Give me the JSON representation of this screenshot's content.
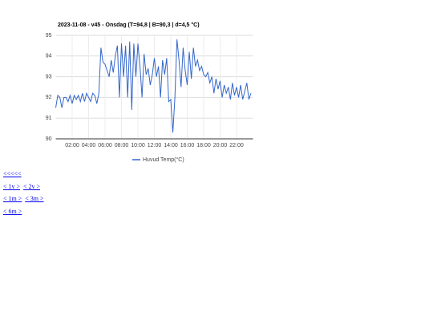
{
  "chart_data": {
    "type": "line",
    "title": "2023-11-08 - v45 - Onsdag (T=94,8 | B=90,3 | d=4,5 °C)",
    "x": [
      0,
      0.25,
      0.5,
      0.75,
      1,
      1.25,
      1.5,
      1.75,
      2,
      2.25,
      2.5,
      2.75,
      3,
      3.25,
      3.5,
      3.75,
      4,
      4.25,
      4.5,
      4.75,
      5,
      5.25,
      5.5,
      5.75,
      6,
      6.25,
      6.5,
      6.75,
      7,
      7.25,
      7.5,
      7.75,
      8,
      8.25,
      8.5,
      8.75,
      9,
      9.25,
      9.5,
      9.75,
      10,
      10.25,
      10.5,
      10.75,
      11,
      11.25,
      11.5,
      11.75,
      12,
      12.25,
      12.5,
      12.75,
      13,
      13.25,
      13.5,
      13.75,
      14,
      14.25,
      14.5,
      14.75,
      15,
      15.25,
      15.5,
      15.75,
      16,
      16.25,
      16.5,
      16.75,
      17,
      17.25,
      17.5,
      17.75,
      18,
      18.25,
      18.5,
      18.75,
      19,
      19.25,
      19.5,
      19.75,
      20,
      20.25,
      20.5,
      20.75,
      21,
      21.25,
      21.5,
      21.75,
      22,
      22.25,
      22.5,
      22.75,
      23,
      23.25,
      23.5,
      23.75
    ],
    "series": [
      {
        "name": "Huvud Temp(°C)",
        "color": "#3366cc",
        "values": [
          91.5,
          92.1,
          92.0,
          91.5,
          92.0,
          92.0,
          91.8,
          92.1,
          91.7,
          92.1,
          91.9,
          92.1,
          91.8,
          92.2,
          91.8,
          92.2,
          92.0,
          91.8,
          92.2,
          92.1,
          91.7,
          92.2,
          94.4,
          93.7,
          93.6,
          93.3,
          93.0,
          93.8,
          93.2,
          94.0,
          94.5,
          92.0,
          94.6,
          93.0,
          94.5,
          92.0,
          94.7,
          91.4,
          94.6,
          93.0,
          94.6,
          93.5,
          92.0,
          94.1,
          93.1,
          93.4,
          92.6,
          93.1,
          93.9,
          93.0,
          93.5,
          92.0,
          93.8,
          93.1,
          93.9,
          91.8,
          91.9,
          90.3,
          92.0,
          94.8,
          93.8,
          92.5,
          94.4,
          93.3,
          92.6,
          94.2,
          92.9,
          94.4,
          93.5,
          93.8,
          93.3,
          93.5,
          93.1,
          93.0,
          93.2,
          92.7,
          93.0,
          92.2,
          92.9,
          92.4,
          92.8,
          92.0,
          92.6,
          92.2,
          92.5,
          91.9,
          92.7,
          92.1,
          92.5,
          92.0,
          92.6,
          91.9,
          92.3,
          92.7,
          91.9,
          92.2
        ]
      }
    ],
    "xlim": [
      0,
      24
    ],
    "xticks": [
      {
        "value": 2,
        "label": "02:00"
      },
      {
        "value": 4,
        "label": "04:00"
      },
      {
        "value": 6,
        "label": "06:00"
      },
      {
        "value": 8,
        "label": "08:00"
      },
      {
        "value": 10,
        "label": "10:00"
      },
      {
        "value": 12,
        "label": "12:00"
      },
      {
        "value": 14,
        "label": "14:00"
      },
      {
        "value": 16,
        "label": "16:00"
      },
      {
        "value": 18,
        "label": "18:00"
      },
      {
        "value": 20,
        "label": "20:00"
      },
      {
        "value": 22,
        "label": "22:00"
      }
    ],
    "ylim": [
      90,
      95
    ],
    "yticks": [
      90,
      91,
      92,
      93,
      94,
      95
    ],
    "grid": true,
    "legend": "bottom"
  },
  "links": [
    [
      "<<<<<"
    ],
    [
      "< 1v >",
      "< 2v >"
    ],
    [
      "< 1m >",
      "< 3m >"
    ],
    [
      "< 6m >"
    ]
  ]
}
